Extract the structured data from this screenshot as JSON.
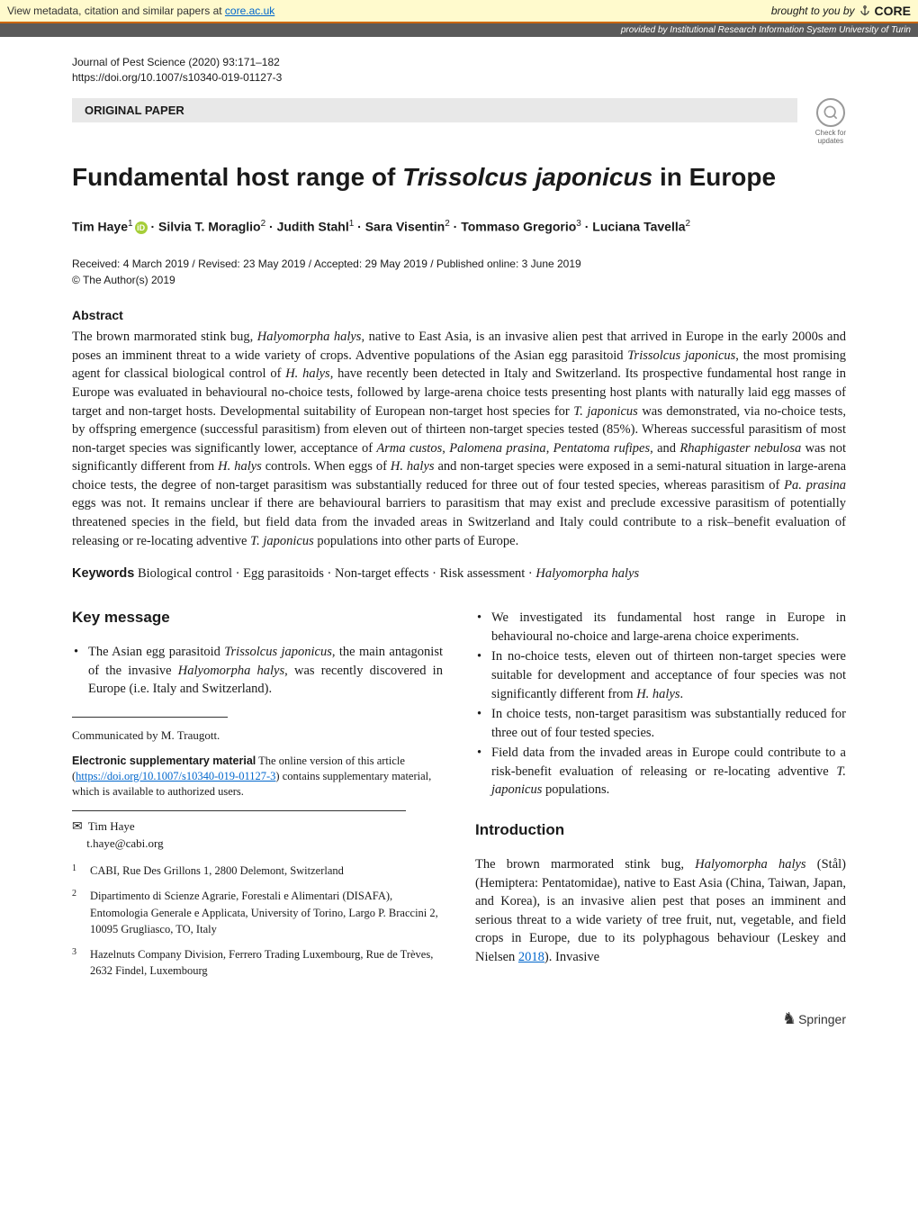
{
  "core_banner": {
    "left_prefix": "View metadata, citation and similar papers at ",
    "left_link": "core.ac.uk",
    "right_prefix": "brought to you by ",
    "logo": "CORE"
  },
  "repo_banner": {
    "prefix": "provided by ",
    "name": "Institutional Research Information System University of Turin"
  },
  "journal": {
    "citation": "Journal of Pest Science (2020) 93:171–182",
    "doi": "https://doi.org/10.1007/s10340-019-01127-3"
  },
  "paper_type": "ORIGINAL PAPER",
  "crossmark": {
    "line1": "Check for",
    "line2": "updates"
  },
  "title": {
    "pre": "Fundamental host range of ",
    "italic": "Trissolcus japonicus",
    "post": " in Europe"
  },
  "authors_html": "Tim Haye<sup>1</sup><span class='orcid-icon' data-name='orcid-icon' data-interactable='false'>iD</span> · Silvia T. Moraglio<sup>2</sup> · Judith Stahl<sup>1</sup> · Sara Visentin<sup>2</sup> · Tommaso Gregorio<sup>3</sup> · Luciana Tavella<sup>2</sup>",
  "dates": "Received: 4 March 2019 / Revised: 23 May 2019 / Accepted: 29 May 2019 / Published online: 3 June 2019",
  "copyright": "© The Author(s) 2019",
  "abstract": {
    "heading": "Abstract",
    "text_html": "The brown marmorated stink bug, <span class='italic'>Halyomorpha halys</span>, native to East Asia, is an invasive alien pest that arrived in Europe in the early 2000s and poses an imminent threat to a wide variety of crops. Adventive populations of the Asian egg parasitoid <span class='italic'>Trissolcus japonicus</span>, the most promising agent for classical biological control of <span class='italic'>H. halys</span>, have recently been detected in Italy and Switzerland. Its prospective fundamental host range in Europe was evaluated in behavioural no-choice tests, followed by large-arena choice tests presenting host plants with naturally laid egg masses of target and non-target hosts. Developmental suitability of European non-target host species for <span class='italic'>T. japonicus</span> was demonstrated, via no-choice tests, by offspring emergence (successful parasitism) from eleven out of thirteen non-target species tested (85%). Whereas successful parasitism of most non-target species was significantly lower, acceptance of <span class='italic'>Arma custos</span>, <span class='italic'>Palomena prasina</span>, <span class='italic'>Pentatoma rufipes,</span> and <span class='italic'>Rhaphigaster nebulosa</span> was not significantly different from <span class='italic'>H. halys</span> controls. When eggs of <span class='italic'>H. halys</span> and non-target species were exposed in a semi-natural situation in large-arena choice tests, the degree of non-target parasitism was substantially reduced for three out of four tested species, whereas parasitism of <span class='italic'>Pa. prasina</span> eggs was not. It remains unclear if there are behavioural barriers to parasitism that may exist and preclude excessive parasitism of potentially threatened species in the field, but field data from the invaded areas in Switzerland and Italy could contribute to a risk–benefit evaluation of releasing or re-locating adventive <span class='italic'>T. japonicus</span> populations into other parts of Europe."
  },
  "keywords": {
    "label": "Keywords",
    "text_html": "  Biological control · Egg parasitoids · Non-target effects · Risk assessment · <span class='italic'>Halyomorpha halys</span>"
  },
  "key_message": {
    "heading": "Key message",
    "bullets_html": [
      "The Asian egg parasitoid <span class='italic'>Trissolcus japonicus</span>, the main antagonist of the invasive <span class='italic'>Halyomorpha halys</span>, was recently discovered in Europe (i.e. Italy and Switzerland).",
      "We investigated its fundamental host range in Europe in behavioural no-choice and large-arena choice experiments.",
      "In no-choice tests, eleven out of thirteen non-target species were suitable for development and acceptance of four species was not significantly different from <span class='italic'>H. halys</span>.",
      "In choice tests, non-target parasitism was substantially reduced for three out of four tested species.",
      "Field data from the invaded areas in Europe could contribute to a risk-benefit evaluation of releasing or re-locating adventive <span class='italic'>T. japonicus</span> populations."
    ]
  },
  "communicated": "Communicated by M. Traugott.",
  "esm": {
    "label": "Electronic supplementary material",
    "pre": "  The online version of this article (",
    "link": "https://doi.org/10.1007/s10340-019-01127-3",
    "post": ") contains supplementary material, which is available to authorized users."
  },
  "corresponding": {
    "name": "Tim Haye",
    "email": "t.haye@cabi.org"
  },
  "affiliations": [
    {
      "num": "1",
      "text": "CABI, Rue Des Grillons 1, 2800 Delemont, Switzerland"
    },
    {
      "num": "2",
      "text": "Dipartimento di Scienze Agrarie, Forestali e Alimentari (DISAFA), Entomologia Generale e Applicata, University of Torino, Largo P. Braccini 2, 10095 Grugliasco, TO, Italy"
    },
    {
      "num": "3",
      "text": "Hazelnuts Company Division, Ferrero Trading Luxembourg, Rue de Trèves, 2632 Findel, Luxembourg"
    }
  ],
  "introduction": {
    "heading": "Introduction",
    "text_html": "The brown marmorated stink bug, <span class='italic'>Halyomorpha halys</span> (Stål) (Hemiptera: Pentatomidae), native to East Asia (China, Taiwan, Japan, and Korea), is an invasive alien pest that poses an imminent and serious threat to a wide variety of tree fruit, nut, vegetable, and field crops in Europe, due to its polyphagous behaviour (Leskey and Nielsen <a href='#' data-name='citation-link' data-interactable='true'>2018</a>). Invasive"
  },
  "springer": "Springer",
  "colors": {
    "banner_bg": "#fffacd",
    "banner_border": "#cc6600",
    "repo_bg": "#5a5a5a",
    "link": "#0066cc",
    "orcid": "#a6ce39",
    "type_box_bg": "#e8e8e8"
  }
}
